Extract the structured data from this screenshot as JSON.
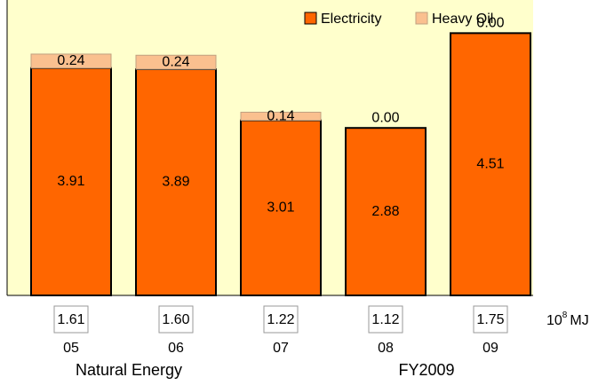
{
  "chart_data": {
    "type": "stacked_bar",
    "categories": [
      "05",
      "06",
      "07",
      "08",
      "09"
    ],
    "series": [
      {
        "name": "Electricity",
        "color": "#ff6600",
        "values": [
          3.91,
          3.89,
          3.01,
          2.88,
          4.51
        ]
      },
      {
        "name": "Heavy Oil",
        "color": "#fac08f",
        "values": [
          0.24,
          0.24,
          0.14,
          0,
          0
        ],
        "value_labels": [
          "0.24",
          "0.24",
          "0.14",
          "0.00",
          "0.00"
        ]
      }
    ],
    "totals": {
      "values": [
        1.61,
        1.6,
        1.22,
        1.12,
        1.75
      ],
      "value_labels": [
        "1.61",
        "1.60",
        "1.22",
        "1.12",
        "1.75"
      ],
      "unit_base": "10",
      "unit_exponent": "8",
      "unit_name": "MJ"
    },
    "ylim": [
      0,
      5.08
    ],
    "legend": "top-right",
    "background": "#ffffcc",
    "footer_left": "Natural Energy",
    "footer_right": "FY2009"
  }
}
